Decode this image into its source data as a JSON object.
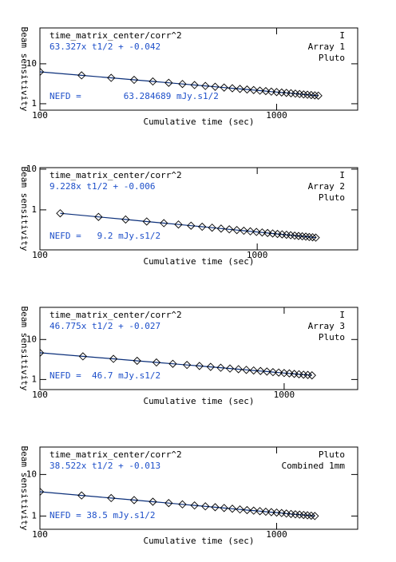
{
  "chart_data": [
    {
      "type": "scatter",
      "title": "time_matrix_center/corr^2",
      "fit_label": "63.327x t1/2 + -0.042",
      "right_labels": [
        "I",
        "Array 1",
        "Pluto"
      ],
      "nefd_label": "NEFD =        63.284689 mJy.s1/2",
      "x_label": "Cumulative time (sec)",
      "y_label": "Beam sensitivity",
      "xlim": [
        100,
        2200
      ],
      "xticks": [
        100,
        1000
      ],
      "ylim": [
        0.69,
        79
      ],
      "yticks": [
        1,
        10
      ],
      "log_x": true,
      "log_y": true,
      "color": "#0b2f7a",
      "x": [
        100,
        150,
        200,
        250,
        300,
        350,
        400,
        450,
        500,
        550,
        600,
        650,
        700,
        750,
        800,
        850,
        900,
        950,
        1000,
        1050,
        1100,
        1150,
        1200,
        1250,
        1300,
        1350,
        1400,
        1450,
        1500
      ],
      "values": [
        6.29,
        5.13,
        4.44,
        3.96,
        3.61,
        3.34,
        3.12,
        2.94,
        2.79,
        2.66,
        2.54,
        2.44,
        2.35,
        2.27,
        2.2,
        2.13,
        2.07,
        2.01,
        1.96,
        1.91,
        1.87,
        1.83,
        1.79,
        1.75,
        1.71,
        1.68,
        1.65,
        1.62,
        1.59
      ]
    },
    {
      "type": "scatter",
      "title": "time_matrix_center/corr^2",
      "fit_label": "9.228x t1/2 + -0.006",
      "right_labels": [
        "I",
        "Array 2",
        "Pluto"
      ],
      "nefd_label": "NEFD =   9.2 mJy.s1/2",
      "x_label": "Cumulative time (sec)",
      "y_label": "Beam sensitivity",
      "xlim": [
        100,
        2900
      ],
      "xticks": [
        100,
        1000
      ],
      "ylim": [
        0.104,
        10.9
      ],
      "yticks": [
        1,
        10
      ],
      "log_x": true,
      "log_y": true,
      "color": "#0b2f7a",
      "x": [
        124,
        186,
        248,
        310,
        372,
        434,
        496,
        558,
        620,
        682,
        744,
        806,
        868,
        930,
        992,
        1054,
        1116,
        1178,
        1240,
        1302,
        1364,
        1426,
        1488,
        1550,
        1612,
        1674,
        1736,
        1798,
        1860
      ],
      "values": [
        0.823,
        0.671,
        0.58,
        0.518,
        0.472,
        0.437,
        0.408,
        0.385,
        0.365,
        0.347,
        0.332,
        0.319,
        0.307,
        0.297,
        0.287,
        0.278,
        0.27,
        0.263,
        0.256,
        0.25,
        0.244,
        0.238,
        0.233,
        0.228,
        0.224,
        0.22,
        0.215,
        0.212,
        0.208
      ]
    },
    {
      "type": "scatter",
      "title": "time_matrix_center/corr^2",
      "fit_label": "46.775x t1/2 + -0.027",
      "right_labels": [
        "I",
        "Array 3",
        "Pluto"
      ],
      "nefd_label": "NEFD =  46.7 mJy.s1/2",
      "x_label": "Cumulative time (sec)",
      "y_label": "Beam sensitivity",
      "xlim": [
        100,
        2000
      ],
      "xticks": [
        100,
        1000
      ],
      "ylim": [
        0.56,
        63.7
      ],
      "yticks": [
        1,
        10
      ],
      "log_x": true,
      "log_y": true,
      "color": "#0b2f7a",
      "x": [
        100,
        150,
        200,
        250,
        300,
        350,
        400,
        450,
        500,
        550,
        600,
        650,
        700,
        750,
        800,
        850,
        900,
        950,
        1000,
        1050,
        1100,
        1150,
        1200,
        1250,
        1300
      ],
      "values": [
        4.65,
        3.79,
        3.28,
        2.93,
        2.67,
        2.47,
        2.31,
        2.18,
        2.07,
        1.97,
        1.88,
        1.81,
        1.74,
        1.68,
        1.63,
        1.58,
        1.53,
        1.49,
        1.45,
        1.42,
        1.38,
        1.35,
        1.32,
        1.3,
        1.27
      ]
    },
    {
      "type": "scatter",
      "title": "time_matrix_center/corr^2",
      "fit_label": "38.522x t1/2 + -0.013",
      "right_labels": [
        "Pluto",
        "Combined 1mm"
      ],
      "nefd_label": "NEFD = 38.5 mJy.s1/2",
      "x_label": "Cumulative time (sec)",
      "y_label": "Beam sensitivity",
      "xlim": [
        100,
        2200
      ],
      "xticks": [
        100,
        1000
      ],
      "ylim": [
        0.48,
        45.8
      ],
      "yticks": [
        1,
        10
      ],
      "log_x": true,
      "log_y": true,
      "color": "#0b2f7a",
      "x": [
        100,
        150,
        200,
        250,
        300,
        350,
        400,
        450,
        500,
        550,
        600,
        650,
        700,
        750,
        800,
        850,
        900,
        950,
        1000,
        1050,
        1100,
        1150,
        1200,
        1250,
        1300,
        1350,
        1400,
        1450
      ],
      "values": [
        3.84,
        3.13,
        2.71,
        2.42,
        2.21,
        2.05,
        1.91,
        1.8,
        1.71,
        1.63,
        1.56,
        1.5,
        1.44,
        1.39,
        1.35,
        1.31,
        1.27,
        1.24,
        1.21,
        1.18,
        1.15,
        1.12,
        1.1,
        1.08,
        1.06,
        1.04,
        1.02,
        1.0
      ]
    }
  ]
}
